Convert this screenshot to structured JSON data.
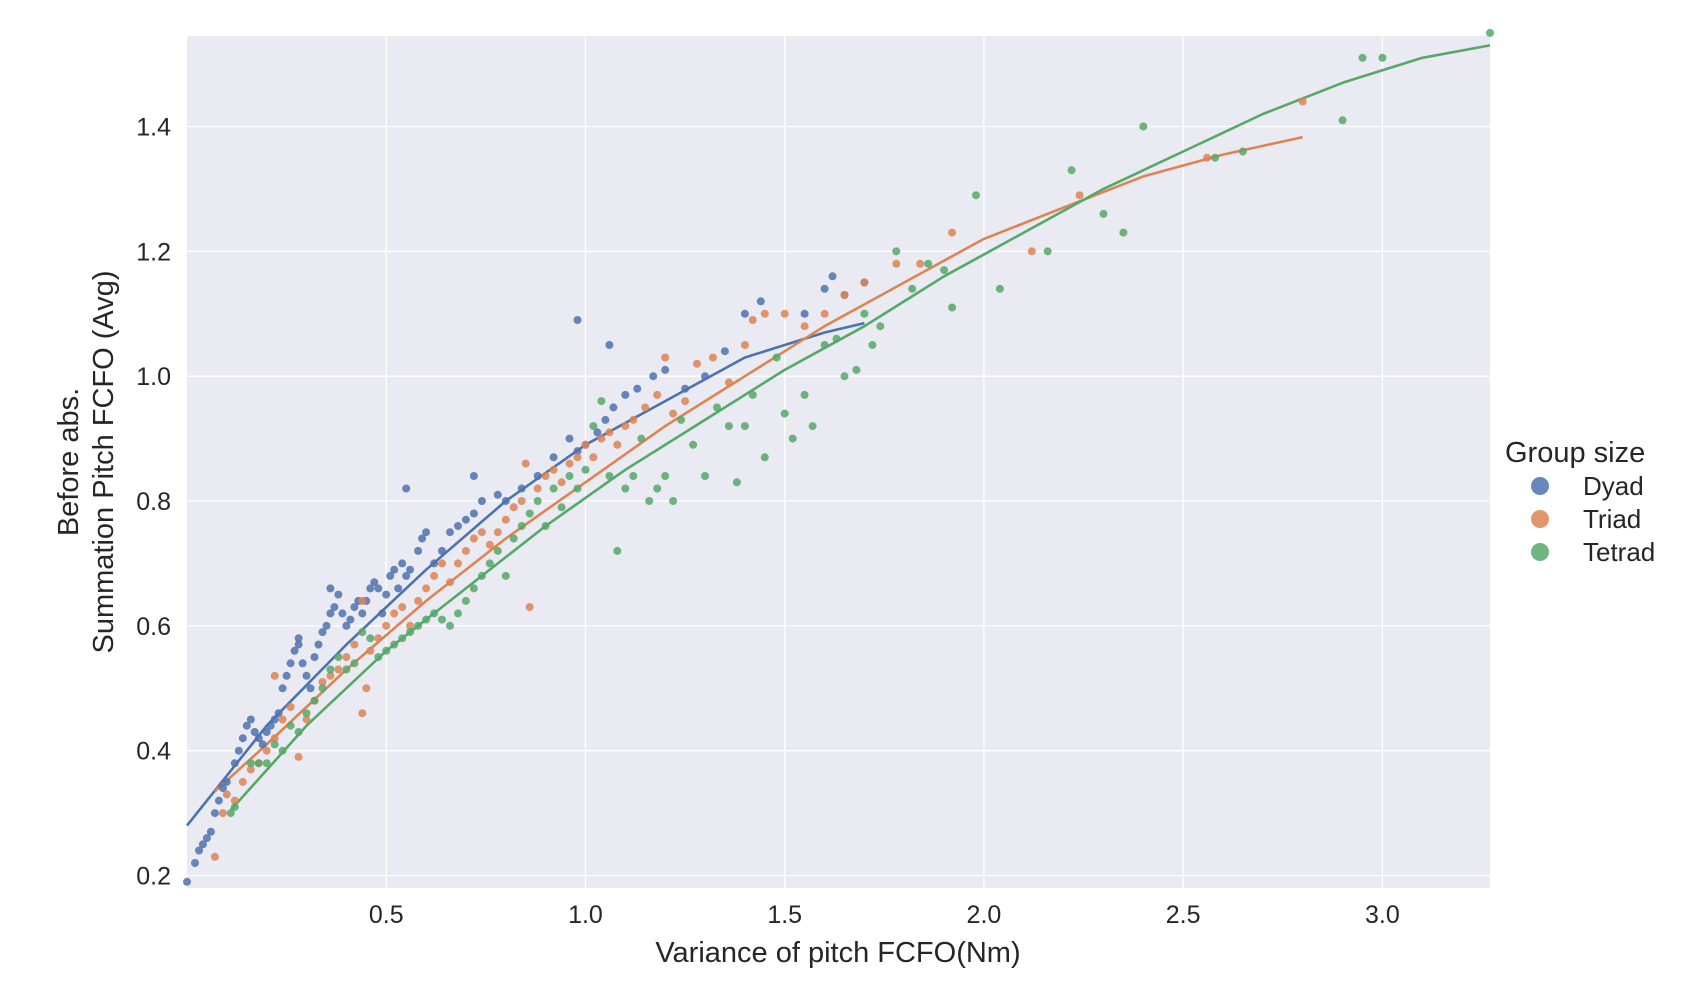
{
  "chart_data": {
    "type": "scatter",
    "xlabel": "Variance of pitch FCFO(Nm)",
    "ylabel_lines": [
      "Before abs.",
      "Summation Pitch FCFO (Avg)"
    ],
    "xlim": [
      0.0,
      3.27
    ],
    "ylim": [
      0.18,
      1.545
    ],
    "xticks": [
      0.5,
      1.0,
      1.5,
      2.0,
      2.5,
      3.0
    ],
    "xtick_labels": [
      "0.5",
      "1.0",
      "1.5",
      "2.0",
      "2.5",
      "3.0"
    ],
    "yticks": [
      0.2,
      0.4,
      0.6,
      0.8,
      1.0,
      1.2,
      1.4
    ],
    "ytick_labels": [
      "0.2",
      "0.4",
      "0.6",
      "0.8",
      "1.0",
      "1.2",
      "1.4"
    ],
    "grid": true,
    "legend": {
      "title": "Group size",
      "placement": "right"
    },
    "series": [
      {
        "name": "Dyad",
        "color": "#4c72b0",
        "points": [
          [
            0.0,
            0.19
          ],
          [
            0.02,
            0.22
          ],
          [
            0.03,
            0.24
          ],
          [
            0.04,
            0.25
          ],
          [
            0.05,
            0.26
          ],
          [
            0.06,
            0.27
          ],
          [
            0.07,
            0.3
          ],
          [
            0.08,
            0.32
          ],
          [
            0.09,
            0.34
          ],
          [
            0.1,
            0.35
          ],
          [
            0.12,
            0.38
          ],
          [
            0.13,
            0.4
          ],
          [
            0.14,
            0.42
          ],
          [
            0.15,
            0.44
          ],
          [
            0.16,
            0.45
          ],
          [
            0.17,
            0.43
          ],
          [
            0.18,
            0.42
          ],
          [
            0.19,
            0.41
          ],
          [
            0.2,
            0.43
          ],
          [
            0.21,
            0.44
          ],
          [
            0.22,
            0.45
          ],
          [
            0.23,
            0.46
          ],
          [
            0.24,
            0.5
          ],
          [
            0.25,
            0.52
          ],
          [
            0.26,
            0.54
          ],
          [
            0.27,
            0.56
          ],
          [
            0.28,
            0.57
          ],
          [
            0.29,
            0.54
          ],
          [
            0.3,
            0.52
          ],
          [
            0.31,
            0.5
          ],
          [
            0.32,
            0.55
          ],
          [
            0.33,
            0.57
          ],
          [
            0.34,
            0.59
          ],
          [
            0.35,
            0.6
          ],
          [
            0.36,
            0.62
          ],
          [
            0.37,
            0.63
          ],
          [
            0.38,
            0.65
          ],
          [
            0.39,
            0.62
          ],
          [
            0.4,
            0.6
          ],
          [
            0.41,
            0.61
          ],
          [
            0.42,
            0.63
          ],
          [
            0.43,
            0.64
          ],
          [
            0.44,
            0.62
          ],
          [
            0.45,
            0.64
          ],
          [
            0.46,
            0.66
          ],
          [
            0.47,
            0.67
          ],
          [
            0.48,
            0.66
          ],
          [
            0.49,
            0.62
          ],
          [
            0.5,
            0.65
          ],
          [
            0.51,
            0.68
          ],
          [
            0.52,
            0.69
          ],
          [
            0.53,
            0.66
          ],
          [
            0.54,
            0.7
          ],
          [
            0.55,
            0.68
          ],
          [
            0.56,
            0.69
          ],
          [
            0.58,
            0.72
          ],
          [
            0.59,
            0.74
          ],
          [
            0.6,
            0.75
          ],
          [
            0.62,
            0.7
          ],
          [
            0.64,
            0.72
          ],
          [
            0.66,
            0.75
          ],
          [
            0.68,
            0.76
          ],
          [
            0.7,
            0.77
          ],
          [
            0.72,
            0.78
          ],
          [
            0.74,
            0.8
          ],
          [
            0.78,
            0.81
          ],
          [
            0.8,
            0.8
          ],
          [
            0.84,
            0.82
          ],
          [
            0.88,
            0.84
          ],
          [
            0.92,
            0.87
          ],
          [
            0.96,
            0.9
          ],
          [
            0.98,
            0.88
          ],
          [
            1.0,
            0.89
          ],
          [
            1.03,
            0.91
          ],
          [
            1.05,
            0.93
          ],
          [
            1.07,
            0.95
          ],
          [
            1.1,
            0.97
          ],
          [
            1.13,
            0.98
          ],
          [
            1.17,
            1.0
          ],
          [
            1.2,
            1.01
          ],
          [
            1.25,
            0.98
          ],
          [
            1.3,
            1.0
          ],
          [
            1.35,
            1.04
          ],
          [
            1.4,
            1.1
          ],
          [
            1.44,
            1.12
          ],
          [
            1.55,
            1.1
          ],
          [
            1.6,
            1.14
          ],
          [
            1.62,
            1.16
          ],
          [
            1.65,
            1.13
          ],
          [
            1.7,
            1.15
          ],
          [
            0.98,
            1.09
          ],
          [
            1.06,
            1.05
          ],
          [
            0.55,
            0.82
          ],
          [
            0.72,
            0.84
          ],
          [
            0.28,
            0.58
          ],
          [
            0.36,
            0.66
          ]
        ],
        "fit": [
          [
            0.0,
            0.28
          ],
          [
            0.2,
            0.44
          ],
          [
            0.4,
            0.57
          ],
          [
            0.6,
            0.69
          ],
          [
            0.8,
            0.8
          ],
          [
            1.0,
            0.89
          ],
          [
            1.2,
            0.96
          ],
          [
            1.4,
            1.03
          ],
          [
            1.6,
            1.07
          ],
          [
            1.7,
            1.085
          ]
        ]
      },
      {
        "name": "Triad",
        "color": "#dd8452",
        "points": [
          [
            0.07,
            0.23
          ],
          [
            0.09,
            0.3
          ],
          [
            0.1,
            0.33
          ],
          [
            0.12,
            0.32
          ],
          [
            0.14,
            0.35
          ],
          [
            0.16,
            0.37
          ],
          [
            0.18,
            0.38
          ],
          [
            0.2,
            0.4
          ],
          [
            0.22,
            0.42
          ],
          [
            0.24,
            0.45
          ],
          [
            0.26,
            0.47
          ],
          [
            0.28,
            0.39
          ],
          [
            0.3,
            0.45
          ],
          [
            0.32,
            0.48
          ],
          [
            0.34,
            0.51
          ],
          [
            0.36,
            0.52
          ],
          [
            0.38,
            0.53
          ],
          [
            0.4,
            0.55
          ],
          [
            0.42,
            0.57
          ],
          [
            0.44,
            0.46
          ],
          [
            0.45,
            0.5
          ],
          [
            0.46,
            0.56
          ],
          [
            0.48,
            0.58
          ],
          [
            0.5,
            0.6
          ],
          [
            0.52,
            0.62
          ],
          [
            0.54,
            0.63
          ],
          [
            0.56,
            0.6
          ],
          [
            0.58,
            0.64
          ],
          [
            0.6,
            0.66
          ],
          [
            0.62,
            0.68
          ],
          [
            0.64,
            0.7
          ],
          [
            0.66,
            0.67
          ],
          [
            0.68,
            0.7
          ],
          [
            0.7,
            0.72
          ],
          [
            0.72,
            0.74
          ],
          [
            0.74,
            0.75
          ],
          [
            0.76,
            0.73
          ],
          [
            0.78,
            0.75
          ],
          [
            0.8,
            0.77
          ],
          [
            0.82,
            0.79
          ],
          [
            0.84,
            0.8
          ],
          [
            0.86,
            0.63
          ],
          [
            0.88,
            0.82
          ],
          [
            0.9,
            0.84
          ],
          [
            0.92,
            0.85
          ],
          [
            0.94,
            0.83
          ],
          [
            0.96,
            0.86
          ],
          [
            0.98,
            0.87
          ],
          [
            1.0,
            0.89
          ],
          [
            1.02,
            0.87
          ],
          [
            1.04,
            0.9
          ],
          [
            1.06,
            0.91
          ],
          [
            1.08,
            0.89
          ],
          [
            1.1,
            0.92
          ],
          [
            1.12,
            0.93
          ],
          [
            1.15,
            0.95
          ],
          [
            1.18,
            0.97
          ],
          [
            1.2,
            1.03
          ],
          [
            1.22,
            0.94
          ],
          [
            1.25,
            0.96
          ],
          [
            1.28,
            1.02
          ],
          [
            1.32,
            1.03
          ],
          [
            1.36,
            0.99
          ],
          [
            1.4,
            1.05
          ],
          [
            1.42,
            1.09
          ],
          [
            1.45,
            1.1
          ],
          [
            1.5,
            1.1
          ],
          [
            1.55,
            1.08
          ],
          [
            1.6,
            1.1
          ],
          [
            1.65,
            1.13
          ],
          [
            1.7,
            1.15
          ],
          [
            1.78,
            1.18
          ],
          [
            1.84,
            1.18
          ],
          [
            1.92,
            1.23
          ],
          [
            2.12,
            1.2
          ],
          [
            2.24,
            1.29
          ],
          [
            2.56,
            1.35
          ],
          [
            2.8,
            1.44
          ],
          [
            0.22,
            0.52
          ],
          [
            0.44,
            0.64
          ],
          [
            0.85,
            0.86
          ]
        ],
        "fit": [
          [
            0.07,
            0.335
          ],
          [
            0.2,
            0.41
          ],
          [
            0.4,
            0.53
          ],
          [
            0.6,
            0.64
          ],
          [
            0.8,
            0.74
          ],
          [
            1.0,
            0.83
          ],
          [
            1.2,
            0.92
          ],
          [
            1.4,
            1.0
          ],
          [
            1.6,
            1.08
          ],
          [
            1.8,
            1.15
          ],
          [
            2.0,
            1.22
          ],
          [
            2.2,
            1.27
          ],
          [
            2.4,
            1.32
          ],
          [
            2.6,
            1.355
          ],
          [
            2.8,
            1.383
          ]
        ]
      },
      {
        "name": "Tetrad",
        "color": "#55a868",
        "points": [
          [
            0.11,
            0.3
          ],
          [
            0.12,
            0.31
          ],
          [
            0.16,
            0.38
          ],
          [
            0.18,
            0.38
          ],
          [
            0.2,
            0.38
          ],
          [
            0.22,
            0.41
          ],
          [
            0.24,
            0.4
          ],
          [
            0.26,
            0.44
          ],
          [
            0.28,
            0.43
          ],
          [
            0.3,
            0.46
          ],
          [
            0.32,
            0.48
          ],
          [
            0.34,
            0.5
          ],
          [
            0.36,
            0.53
          ],
          [
            0.38,
            0.55
          ],
          [
            0.4,
            0.53
          ],
          [
            0.42,
            0.54
          ],
          [
            0.44,
            0.59
          ],
          [
            0.46,
            0.58
          ],
          [
            0.48,
            0.55
          ],
          [
            0.5,
            0.56
          ],
          [
            0.52,
            0.57
          ],
          [
            0.54,
            0.58
          ],
          [
            0.56,
            0.59
          ],
          [
            0.58,
            0.6
          ],
          [
            0.6,
            0.61
          ],
          [
            0.62,
            0.62
          ],
          [
            0.64,
            0.61
          ],
          [
            0.66,
            0.6
          ],
          [
            0.68,
            0.62
          ],
          [
            0.7,
            0.64
          ],
          [
            0.72,
            0.66
          ],
          [
            0.74,
            0.68
          ],
          [
            0.76,
            0.7
          ],
          [
            0.78,
            0.72
          ],
          [
            0.8,
            0.68
          ],
          [
            0.82,
            0.74
          ],
          [
            0.84,
            0.76
          ],
          [
            0.86,
            0.78
          ],
          [
            0.88,
            0.8
          ],
          [
            0.9,
            0.76
          ],
          [
            0.92,
            0.82
          ],
          [
            0.94,
            0.79
          ],
          [
            0.96,
            0.84
          ],
          [
            0.98,
            0.82
          ],
          [
            1.0,
            0.85
          ],
          [
            1.02,
            0.92
          ],
          [
            1.04,
            0.96
          ],
          [
            1.06,
            0.84
          ],
          [
            1.08,
            0.72
          ],
          [
            1.1,
            0.82
          ],
          [
            1.12,
            0.84
          ],
          [
            1.14,
            0.9
          ],
          [
            1.16,
            0.8
          ],
          [
            1.18,
            0.82
          ],
          [
            1.2,
            0.84
          ],
          [
            1.22,
            0.8
          ],
          [
            1.24,
            0.93
          ],
          [
            1.27,
            0.89
          ],
          [
            1.3,
            0.84
          ],
          [
            1.33,
            0.95
          ],
          [
            1.36,
            0.92
          ],
          [
            1.38,
            0.83
          ],
          [
            1.4,
            0.92
          ],
          [
            1.42,
            0.97
          ],
          [
            1.45,
            0.87
          ],
          [
            1.48,
            1.03
          ],
          [
            1.5,
            0.94
          ],
          [
            1.52,
            0.9
          ],
          [
            1.55,
            0.97
          ],
          [
            1.57,
            0.92
          ],
          [
            1.6,
            1.05
          ],
          [
            1.63,
            1.06
          ],
          [
            1.65,
            1.0
          ],
          [
            1.68,
            1.01
          ],
          [
            1.7,
            1.1
          ],
          [
            1.72,
            1.05
          ],
          [
            1.74,
            1.08
          ],
          [
            1.78,
            1.2
          ],
          [
            1.82,
            1.14
          ],
          [
            1.86,
            1.18
          ],
          [
            1.9,
            1.17
          ],
          [
            1.92,
            1.11
          ],
          [
            1.98,
            1.29
          ],
          [
            2.04,
            1.14
          ],
          [
            2.16,
            1.2
          ],
          [
            2.22,
            1.33
          ],
          [
            2.3,
            1.26
          ],
          [
            2.35,
            1.23
          ],
          [
            2.4,
            1.4
          ],
          [
            2.58,
            1.35
          ],
          [
            2.65,
            1.36
          ],
          [
            2.9,
            1.41
          ],
          [
            2.95,
            1.51
          ],
          [
            3.0,
            1.51
          ],
          [
            3.27,
            1.55
          ]
        ],
        "fit": [
          [
            0.11,
            0.305
          ],
          [
            0.3,
            0.44
          ],
          [
            0.5,
            0.56
          ],
          [
            0.7,
            0.66
          ],
          [
            0.9,
            0.76
          ],
          [
            1.1,
            0.85
          ],
          [
            1.3,
            0.93
          ],
          [
            1.5,
            1.01
          ],
          [
            1.7,
            1.08
          ],
          [
            1.9,
            1.16
          ],
          [
            2.1,
            1.23
          ],
          [
            2.3,
            1.3
          ],
          [
            2.5,
            1.36
          ],
          [
            2.7,
            1.42
          ],
          [
            2.9,
            1.47
          ],
          [
            3.1,
            1.51
          ],
          [
            3.27,
            1.53
          ]
        ]
      }
    ]
  }
}
